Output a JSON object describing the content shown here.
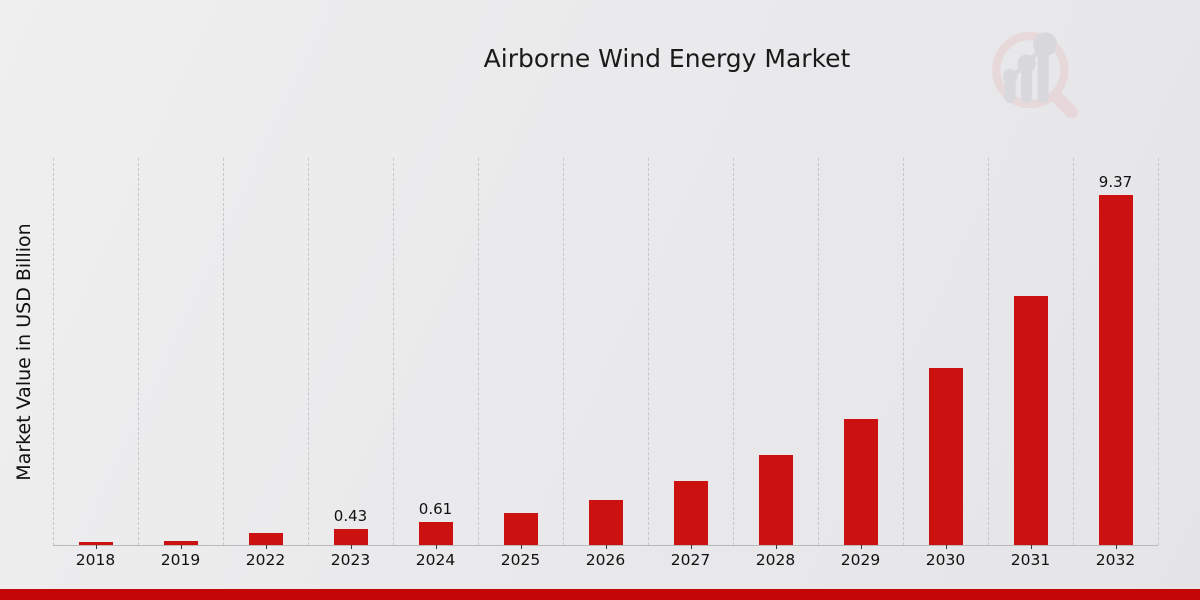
{
  "title": "Airborne Wind Energy Market",
  "ylabel": "Market Value in USD Billion",
  "colors": {
    "bar": "#cc1111",
    "bottom_strip": "#c40606",
    "gridline": "#c7c7ca",
    "axis_line": "#b9b9bc",
    "background": "#eaeaec",
    "logo_ring_pink": "#e7cbce",
    "logo_bars_gray": "#ccccd3"
  },
  "logo_name": "magnifier-bar-chart-logo",
  "chart_data": {
    "type": "bar",
    "title": "Airborne Wind Energy Market",
    "xlabel": "",
    "ylabel": "Market Value in USD Billion",
    "categories": [
      "2018",
      "2019",
      "2022",
      "2023",
      "2024",
      "2025",
      "2026",
      "2027",
      "2028",
      "2029",
      "2030",
      "2031",
      "2032"
    ],
    "values": [
      0.07,
      0.1,
      0.31,
      0.43,
      0.61,
      0.86,
      1.21,
      1.7,
      2.4,
      3.37,
      4.73,
      6.66,
      9.37
    ],
    "data_labels": [
      "",
      "",
      "",
      "0.43",
      "0.61",
      "",
      "",
      "",
      "",
      "",
      "",
      "",
      "9.37"
    ],
    "ylim": [
      0,
      10.36
    ],
    "grid": "vertical-dashed",
    "legend": "none",
    "bar_color": "#cc1111"
  }
}
